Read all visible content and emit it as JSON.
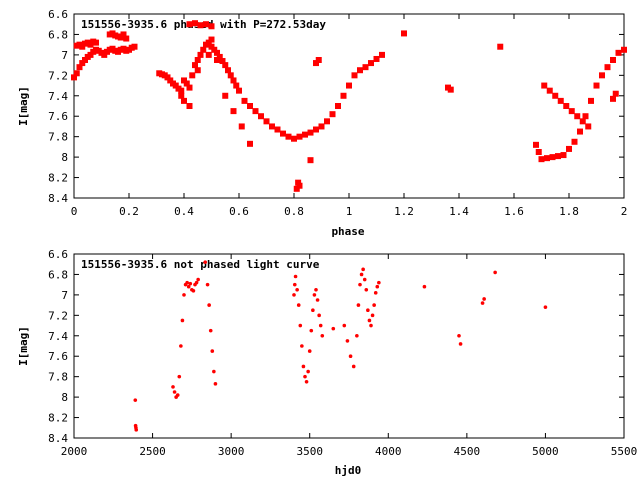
{
  "colors": {
    "points": "#ff0000",
    "axes": "#000000",
    "background": "#ffffff"
  },
  "chart_data": [
    {
      "type": "scatter",
      "title": "151556-3935.6 phased with P=272.53day",
      "xlabel": "phase",
      "ylabel": "I[mag]",
      "xlim": [
        0,
        2
      ],
      "ylim": [
        8.4,
        6.6
      ],
      "y_inverted": true,
      "grid": false,
      "xticks": [
        0,
        0.2,
        0.4,
        0.6,
        0.8,
        1,
        1.2,
        1.4,
        1.6,
        1.8,
        2
      ],
      "xtick_labels": [
        "0",
        "0.2",
        "0.4",
        "0.6",
        "0.8",
        "1",
        "1.2",
        "1.4",
        "1.6",
        "1.8",
        "2"
      ],
      "yticks": [
        6.6,
        6.8,
        7,
        7.2,
        7.4,
        7.6,
        7.8,
        8,
        8.2,
        8.4
      ],
      "ytick_labels": [
        "6.6",
        "6.8",
        "7",
        "7.2",
        "7.4",
        "7.6",
        "7.8",
        "8",
        "8.2",
        "8.4"
      ],
      "marker": "large",
      "series": [
        {
          "x": [
            0.0,
            0.01,
            0.02,
            0.03,
            0.04,
            0.05,
            0.06,
            0.07,
            0.08,
            0.09,
            0.1,
            0.11,
            0.12,
            0.13,
            0.14,
            0.15,
            0.16,
            0.17,
            0.18,
            0.19,
            0.2,
            0.21,
            0.22,
            0.01,
            0.02,
            0.03,
            0.04,
            0.05,
            0.06,
            0.07,
            0.08,
            0.13,
            0.14,
            0.15,
            0.16,
            0.17,
            0.18,
            0.19,
            0.31,
            0.32,
            0.33,
            0.34,
            0.35,
            0.36,
            0.37,
            0.38,
            0.39,
            0.4,
            0.41,
            0.42,
            0.43,
            0.44,
            0.45,
            0.46,
            0.47,
            0.48,
            0.49,
            0.5,
            0.51,
            0.52,
            0.53,
            0.54,
            0.55,
            0.56,
            0.57,
            0.58,
            0.59,
            0.6,
            0.39,
            0.4,
            0.42,
            0.45,
            0.49,
            0.5,
            0.52,
            0.55,
            0.58,
            0.61,
            0.64,
            0.42,
            0.44,
            0.46,
            0.48,
            0.5,
            0.62,
            0.64,
            0.66,
            0.68,
            0.7,
            0.72,
            0.74,
            0.76,
            0.78,
            0.8,
            0.82,
            0.84,
            0.86,
            0.88,
            0.9,
            0.92,
            0.94,
            0.96,
            0.98,
            1.0,
            1.02,
            1.04,
            1.06,
            1.08,
            1.1,
            1.12,
            0.81,
            0.82,
            0.815,
            0.86,
            0.88,
            0.89,
            1.2,
            1.36,
            1.37,
            1.55,
            1.68,
            1.69,
            1.7,
            1.72,
            1.74,
            1.76,
            1.78,
            1.8,
            1.82,
            1.84,
            1.86,
            1.88,
            1.9,
            1.92,
            1.94,
            1.96,
            1.98,
            2.0,
            1.71,
            1.73,
            1.75,
            1.77,
            1.79,
            1.81,
            1.83,
            1.85,
            1.87,
            1.96,
            1.97
          ],
          "y": [
            7.22,
            7.18,
            7.12,
            7.08,
            7.05,
            7.02,
            7.0,
            6.97,
            6.95,
            6.96,
            6.98,
            7.0,
            6.97,
            6.95,
            6.94,
            6.96,
            6.97,
            6.95,
            6.94,
            6.96,
            6.95,
            6.93,
            6.92,
            6.91,
            6.9,
            6.92,
            6.89,
            6.88,
            6.9,
            6.87,
            6.88,
            6.8,
            6.79,
            6.81,
            6.82,
            6.83,
            6.8,
            6.84,
            7.18,
            7.19,
            7.2,
            7.22,
            7.25,
            7.28,
            7.3,
            7.33,
            7.35,
            7.25,
            7.28,
            7.32,
            7.2,
            7.1,
            7.05,
            7.0,
            6.95,
            6.9,
            6.88,
            6.92,
            6.95,
            6.98,
            7.02,
            7.06,
            7.1,
            7.15,
            7.2,
            7.25,
            7.3,
            7.35,
            7.4,
            7.45,
            7.5,
            7.15,
            7.0,
            6.85,
            7.05,
            7.4,
            7.55,
            7.7,
            7.87,
            6.7,
            6.69,
            6.71,
            6.7,
            6.72,
            7.45,
            7.5,
            7.55,
            7.6,
            7.65,
            7.7,
            7.73,
            7.77,
            7.8,
            7.82,
            7.8,
            7.78,
            7.76,
            7.73,
            7.7,
            7.65,
            7.58,
            7.5,
            7.4,
            7.3,
            7.2,
            7.15,
            7.12,
            7.08,
            7.04,
            7.0,
            8.31,
            8.28,
            8.25,
            8.03,
            7.08,
            7.05,
            6.79,
            7.32,
            7.34,
            6.92,
            7.88,
            7.95,
            8.02,
            8.01,
            8.0,
            7.99,
            7.98,
            7.92,
            7.85,
            7.75,
            7.6,
            7.45,
            7.3,
            7.2,
            7.12,
            7.05,
            6.98,
            6.95,
            7.3,
            7.35,
            7.4,
            7.45,
            7.5,
            7.55,
            7.6,
            7.65,
            7.7,
            7.43,
            7.38
          ],
          "name": ""
        }
      ]
    },
    {
      "type": "scatter",
      "title": "151556-3935.6 not phased light curve",
      "xlabel": "hjd0",
      "ylabel": "I[mag]",
      "xlim": [
        2000,
        5500
      ],
      "ylim": [
        8.4,
        6.6
      ],
      "y_inverted": true,
      "grid": false,
      "xticks": [
        2000,
        2500,
        3000,
        3500,
        4000,
        4500,
        5000,
        5500
      ],
      "xtick_labels": [
        "2000",
        "2500",
        "3000",
        "3500",
        "4000",
        "4500",
        "5000",
        "5500"
      ],
      "yticks": [
        6.6,
        6.8,
        7,
        7.2,
        7.4,
        7.6,
        7.8,
        8,
        8.2,
        8.4
      ],
      "ytick_labels": [
        "6.6",
        "6.8",
        "7",
        "7.2",
        "7.4",
        "7.6",
        "7.8",
        "8",
        "8.2",
        "8.4"
      ],
      "marker": "small",
      "series": [
        {
          "x": [
            2390,
            2392,
            2394,
            2396,
            2630,
            2640,
            2650,
            2660,
            2670,
            2680,
            2690,
            2700,
            2710,
            2720,
            2730,
            2740,
            2750,
            2760,
            2770,
            2780,
            2790,
            2835,
            2850,
            2860,
            2870,
            2880,
            2890,
            2900,
            3400,
            3405,
            3410,
            3420,
            3430,
            3440,
            3450,
            3460,
            3470,
            3480,
            3490,
            3500,
            3510,
            3520,
            3530,
            3540,
            3550,
            3560,
            3570,
            3580,
            3650,
            3720,
            3740,
            3760,
            3780,
            3800,
            3810,
            3820,
            3830,
            3840,
            3850,
            3860,
            3870,
            3880,
            3890,
            3900,
            3910,
            3920,
            3930,
            3940,
            4230,
            4450,
            4460,
            4600,
            4610,
            4680,
            5000
          ],
          "y": [
            8.03,
            8.28,
            8.3,
            8.32,
            7.9,
            7.95,
            8.0,
            7.98,
            7.8,
            7.5,
            7.25,
            7.0,
            6.9,
            6.88,
            6.92,
            6.89,
            6.95,
            6.96,
            6.9,
            6.88,
            6.85,
            6.68,
            6.9,
            7.1,
            7.35,
            7.55,
            7.75,
            7.87,
            7.0,
            6.9,
            6.82,
            6.95,
            7.1,
            7.3,
            7.5,
            7.7,
            7.8,
            7.85,
            7.75,
            7.55,
            7.35,
            7.15,
            7.0,
            6.95,
            7.05,
            7.2,
            7.3,
            7.4,
            7.33,
            7.3,
            7.45,
            7.6,
            7.7,
            7.4,
            7.1,
            6.9,
            6.8,
            6.75,
            6.85,
            6.95,
            7.15,
            7.25,
            7.3,
            7.2,
            7.1,
            6.98,
            6.92,
            6.88,
            6.92,
            7.4,
            7.48,
            7.08,
            7.04,
            6.78,
            7.12
          ],
          "name": ""
        }
      ]
    }
  ]
}
